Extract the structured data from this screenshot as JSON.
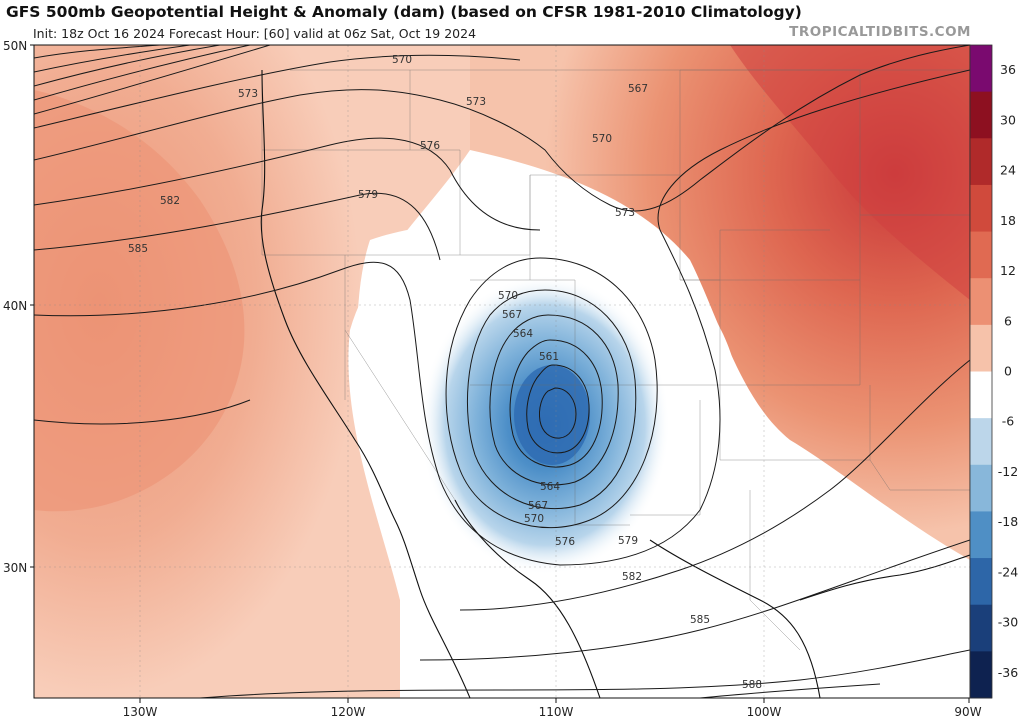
{
  "header": {
    "title": "GFS 500mb Geopotential Height & Anomaly (dam) (based on CFSR 1981-2010 Climatology)",
    "subtitle": "Init: 18z Oct 16 2024   Forecast Hour: [60]   valid at 06z Sat, Oct 19 2024",
    "site": "TROPICALTIDBITS.COM"
  },
  "axes": {
    "lat_labels": [
      "50N",
      "40N",
      "30N"
    ],
    "lon_labels": [
      "130W",
      "120W",
      "110W",
      "100W",
      "90W"
    ]
  },
  "contour_labels": [
    "570",
    "573",
    "567",
    "573",
    "570",
    "576",
    "579",
    "573",
    "582",
    "585",
    "570",
    "567",
    "564",
    "561",
    "564",
    "567",
    "570",
    "576",
    "579",
    "582",
    "585",
    "588"
  ],
  "colorbar": {
    "labels": [
      "36",
      "30",
      "24",
      "18",
      "12",
      "6",
      "0",
      "-6",
      "-12",
      "-18",
      "-24",
      "-30",
      "-36"
    ],
    "colors": [
      "#7a0a6f",
      "#8d1020",
      "#b02a2a",
      "#d04a3c",
      "#e06a52",
      "#ec9073",
      "#f6c2aa",
      "#ffffff",
      "#bcd6ea",
      "#88b7da",
      "#4f8fc5",
      "#2d66a8",
      "#1a3f7a",
      "#0e2250"
    ]
  }
}
